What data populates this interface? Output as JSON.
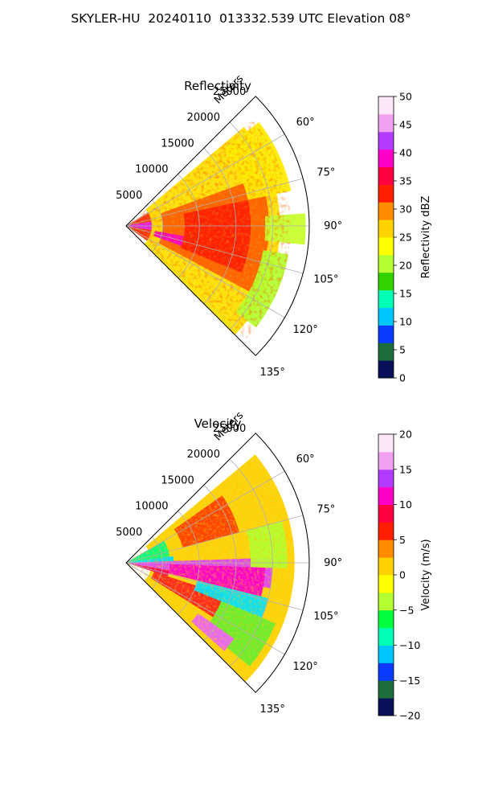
{
  "page": {
    "title": "SKYLER-HU  20240110  013332.539 UTC Elevation 08°"
  },
  "chart_data": [
    {
      "type": "polar_sector_heatmap",
      "title": "Reflectivity",
      "radial_axis_label": "Meters",
      "radial_ticks": [
        "5000",
        "10000",
        "15000",
        "20000",
        "25000"
      ],
      "radial_tick_values": [
        5000,
        10000,
        15000,
        20000,
        25000
      ],
      "angle_ticks": [
        "60°",
        "75°",
        "90°",
        "105°",
        "120°",
        "135°"
      ],
      "angle_tick_values": [
        60,
        75,
        90,
        105,
        120,
        135
      ],
      "theta_range": [
        45,
        135
      ],
      "r_max": 25000,
      "colorbar": {
        "label": "Reflectivity dBZ",
        "range": [
          0,
          50
        ],
        "ticks": [
          "0",
          "5",
          "10",
          "15",
          "20",
          "25",
          "30",
          "35",
          "40",
          "45",
          "50"
        ],
        "tick_values": [
          0,
          5,
          10,
          15,
          20,
          25,
          30,
          35,
          40,
          45,
          50
        ],
        "colors": [
          "#08105a",
          "#1e6e3c",
          "#0a3cff",
          "#00c8ff",
          "#00ffb4",
          "#32d200",
          "#b4ff32",
          "#ffff00",
          "#ffd200",
          "#ff8c00",
          "#ff1e00",
          "#ff0040",
          "#ff00c8",
          "#b43cff",
          "#f0a0f0",
          "#fde6f8"
        ]
      },
      "dominant_values": "mostly 25–35 dBZ with scattered 35–40 dBZ cores"
    },
    {
      "type": "polar_sector_heatmap",
      "title": "Velocity",
      "radial_axis_label": "Meters",
      "radial_ticks": [
        "5000",
        "10000",
        "15000",
        "20000",
        "25000"
      ],
      "radial_tick_values": [
        5000,
        10000,
        15000,
        20000,
        25000
      ],
      "angle_ticks": [
        "60°",
        "75°",
        "90°",
        "105°",
        "120°",
        "135°"
      ],
      "angle_tick_values": [
        60,
        75,
        90,
        105,
        120,
        135
      ],
      "theta_range": [
        45,
        135
      ],
      "r_max": 25000,
      "colorbar": {
        "label": "Velocity (m/s)",
        "range": [
          -20,
          20
        ],
        "ticks": [
          "−20",
          "−15",
          "−10",
          "−5",
          "0",
          "5",
          "10",
          "15",
          "20"
        ],
        "tick_values": [
          -20,
          -15,
          -10,
          -5,
          0,
          5,
          10,
          15,
          20
        ],
        "colors": [
          "#08105a",
          "#1e6e3c",
          "#0a3cff",
          "#00c8ff",
          "#00ffb4",
          "#00ff3c",
          "#b4ff32",
          "#ffff00",
          "#ffd200",
          "#ff8c00",
          "#ff1e00",
          "#ff0040",
          "#ff00c8",
          "#b43cff",
          "#f0a0f0",
          "#fde6f8"
        ]
      },
      "dominant_values": "bands from −10 to +15 m/s; positive (magenta/red) band near 90–110°, negative (cyan/green) near edges"
    }
  ]
}
